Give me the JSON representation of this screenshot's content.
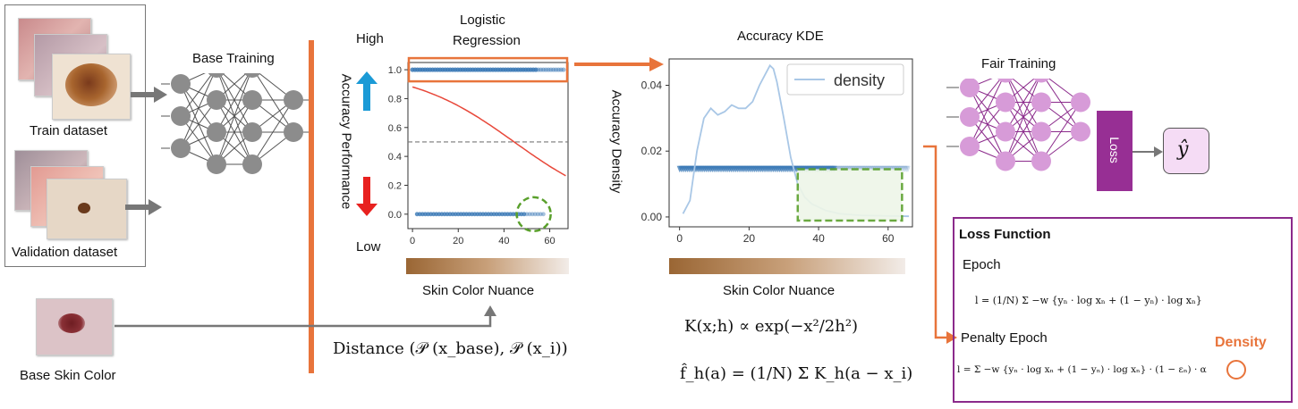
{
  "datasets": {
    "train_label": "Train dataset",
    "validation_label": "Validation dataset",
    "base_skin_label": "Base Skin Color"
  },
  "base_training": {
    "title": "Base Training"
  },
  "logistic": {
    "title_line1": "Logistic",
    "title_line2": "Regression",
    "high_label": "High",
    "low_label": "Low",
    "ylabel": "Accuracy Performance",
    "xlabel": "Skin Color Nuance",
    "yticks": [
      "1.0",
      "0.8",
      "0.6",
      "0.4",
      "0.2",
      "0.0"
    ],
    "xticks": [
      "0",
      "20",
      "40",
      "60"
    ]
  },
  "distance_formula": "Distance (𝒫 (x_base), 𝒫 (x_i))",
  "kde": {
    "title": "Accuracy KDE",
    "ylabel": "Accuracy Density",
    "xlabel": "Skin Color Nuance",
    "legend": "density",
    "yticks": [
      "0.04",
      "0.02",
      "0.00"
    ],
    "xticks": [
      "0",
      "20",
      "40",
      "60"
    ],
    "formula1": "K(x;h) ∝ exp(−x²/2h²)",
    "formula2": "f̂_h(a) = (1/N) Σ K_h(a − x_i)"
  },
  "fair_training": {
    "title": "Fair Training",
    "loss_box": "Loss",
    "output": "ŷ"
  },
  "loss_function": {
    "title": "Loss Function",
    "epoch_label": "Epoch",
    "epoch_formula": "l = (1/N) Σ −w {yₙ · log xₙ + (1 − yₙ) · log xₙ}",
    "penalty_label": "Penalty Epoch",
    "penalty_formula": "l = Σ −w {yₙ · log xₙ + (1 − yₙ) · log xₙ} · (1 − εₙ) · α",
    "density_label": "Density"
  },
  "colors": {
    "orange": "#e8743b",
    "purple": "#8b2a8b",
    "green": "#5aa02c",
    "blue": "#3a78b5",
    "red": "#e8483a",
    "node_gray": "#8c8c8c",
    "node_pink": "#d79bd8"
  }
}
